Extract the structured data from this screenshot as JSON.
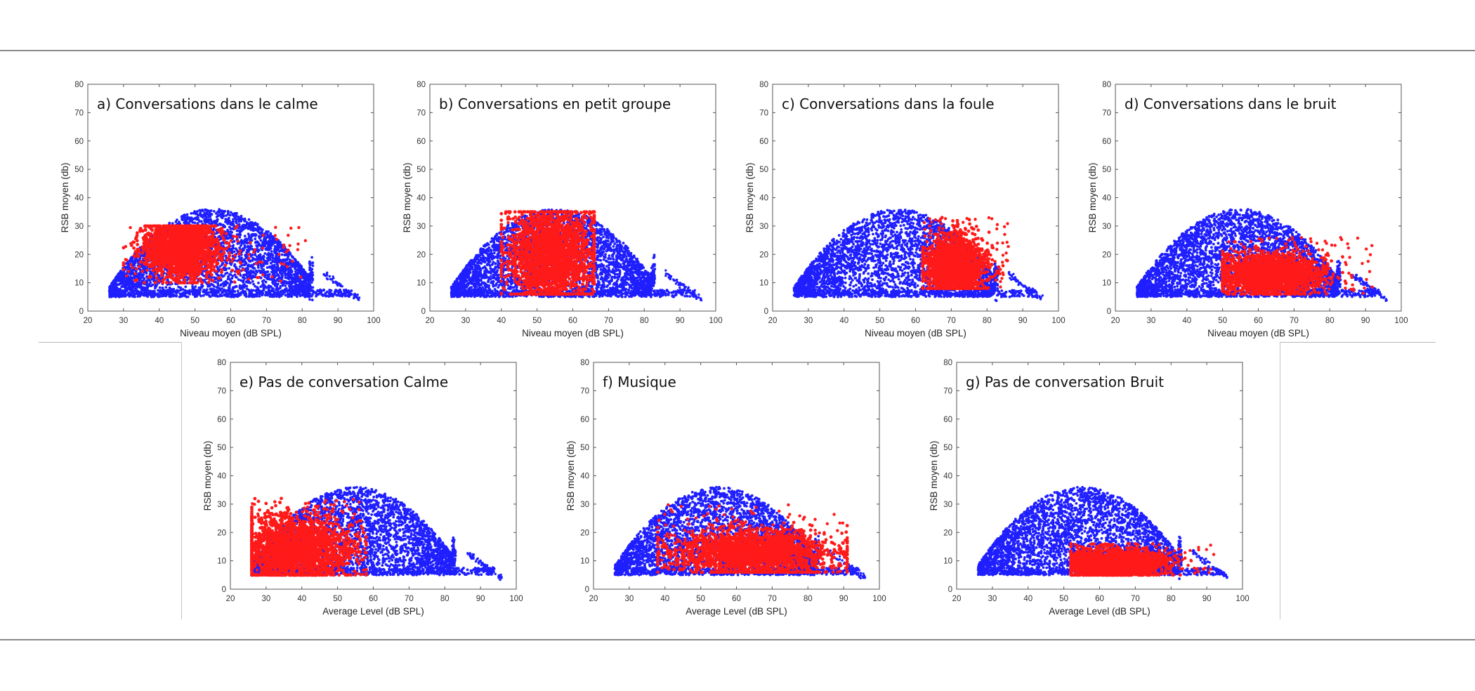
{
  "chart_data": [
    {
      "type": "scatter",
      "title": "a) Conversations dans le calme",
      "xlabel": "Niveau moyen (dB SPL)",
      "ylabel": "RSB moyen (db)",
      "xlim": [
        20,
        100
      ],
      "ylim": [
        0,
        80
      ],
      "xticks": [
        20,
        30,
        40,
        50,
        60,
        70,
        80,
        90,
        100
      ],
      "yticks": [
        0,
        10,
        20,
        30,
        40,
        50,
        60,
        70,
        80
      ],
      "series": [
        {
          "color": "#1f1fff",
          "dist": {
            "x_range": [
              26,
              96
            ],
            "y_min": 5,
            "peak_x": 55,
            "peak_y": 36,
            "tail": 12
          }
        },
        {
          "color": "#ff1a1a",
          "dist": {
            "cx": 46,
            "cy": 22,
            "sx": 5,
            "sy": 5,
            "spread_x": [
              30,
              82
            ],
            "spread_y": [
              10,
              30
            ]
          }
        }
      ]
    },
    {
      "type": "scatter",
      "title": "b) Conversations en petit groupe",
      "xlabel": "Niveau moyen (dB SPL)",
      "ylabel": "RSB moyen (db)",
      "xlim": [
        20,
        100
      ],
      "ylim": [
        0,
        80
      ],
      "xticks": [
        20,
        30,
        40,
        50,
        60,
        70,
        80,
        90,
        100
      ],
      "yticks": [
        0,
        10,
        20,
        30,
        40,
        50,
        60,
        70,
        80
      ],
      "series": [
        {
          "color": "#1f1fff",
          "dist": {
            "x_range": [
              26,
              96
            ],
            "y_min": 5,
            "peak_x": 55,
            "peak_y": 36,
            "tail": 12
          }
        },
        {
          "color": "#ff1a1a",
          "dist": {
            "cx": 54,
            "cy": 20,
            "sx": 6,
            "sy": 8,
            "spread_x": [
              40,
              66
            ],
            "spread_y": [
              6,
              35
            ]
          }
        }
      ]
    },
    {
      "type": "scatter",
      "title": "c) Conversations dans la foule",
      "xlabel": "Niveau moyen (dB SPL)",
      "ylabel": "RSB moyen (db)",
      "xlim": [
        20,
        100
      ],
      "ylim": [
        0,
        80
      ],
      "xticks": [
        20,
        30,
        40,
        50,
        60,
        70,
        80,
        90,
        100
      ],
      "yticks": [
        0,
        10,
        20,
        30,
        40,
        50,
        60,
        70,
        80
      ],
      "series": [
        {
          "color": "#1f1fff",
          "dist": {
            "x_range": [
              26,
              96
            ],
            "y_min": 5,
            "peak_x": 55,
            "peak_y": 36,
            "tail": 12
          }
        },
        {
          "color": "#ff1a1a",
          "dist": {
            "cx": 71,
            "cy": 16,
            "sx": 4,
            "sy": 5,
            "spread_x": [
              62,
              86
            ],
            "spread_y": [
              8,
              33
            ]
          }
        }
      ]
    },
    {
      "type": "scatter",
      "title": "d) Conversations dans le bruit",
      "xlabel": "Niveau moyen (dB SPL)",
      "ylabel": "RSB moyen (db)",
      "xlim": [
        20,
        100
      ],
      "ylim": [
        0,
        80
      ],
      "xticks": [
        20,
        30,
        40,
        50,
        60,
        70,
        80,
        90,
        100
      ],
      "yticks": [
        0,
        10,
        20,
        30,
        40,
        50,
        60,
        70,
        80
      ],
      "series": [
        {
          "color": "#1f1fff",
          "dist": {
            "x_range": [
              26,
              96
            ],
            "y_min": 5,
            "peak_x": 55,
            "peak_y": 36,
            "tail": 12
          }
        },
        {
          "color": "#ff1a1a",
          "dist": {
            "cx": 63,
            "cy": 13,
            "sx": 7,
            "sy": 3.5,
            "spread_x": [
              50,
              92
            ],
            "spread_y": [
              6,
              26
            ]
          }
        }
      ]
    },
    {
      "type": "scatter",
      "title": "e) Pas de conversation Calme",
      "xlabel": "Average Level (dB SPL)",
      "ylabel": "RSB moyen (db)",
      "xlim": [
        20,
        100
      ],
      "ylim": [
        0,
        80
      ],
      "xticks": [
        20,
        30,
        40,
        50,
        60,
        70,
        80,
        90,
        100
      ],
      "yticks": [
        0,
        10,
        20,
        30,
        40,
        50,
        60,
        70,
        80
      ],
      "series": [
        {
          "color": "#1f1fff",
          "dist": {
            "x_range": [
              26,
              96
            ],
            "y_min": 5,
            "peak_x": 55,
            "peak_y": 36,
            "tail": 12
          }
        },
        {
          "color": "#ff1a1a",
          "dist": {
            "cx": 38,
            "cy": 14,
            "sx": 8,
            "sy": 6,
            "spread_x": [
              26,
              58
            ],
            "spread_y": [
              5,
              32
            ]
          }
        }
      ]
    },
    {
      "type": "scatter",
      "title": "f) Musique",
      "xlabel": "Average Level (dB SPL)",
      "ylabel": "RSB moyen (db)",
      "xlim": [
        20,
        100
      ],
      "ylim": [
        0,
        80
      ],
      "xticks": [
        20,
        30,
        40,
        50,
        60,
        70,
        80,
        90,
        100
      ],
      "yticks": [
        0,
        10,
        20,
        30,
        40,
        50,
        60,
        70,
        80
      ],
      "series": [
        {
          "color": "#1f1fff",
          "dist": {
            "x_range": [
              26,
              96
            ],
            "y_min": 5,
            "peak_x": 55,
            "peak_y": 36,
            "tail": 12
          }
        },
        {
          "color": "#ff1a1a",
          "dist": {
            "cx": 65,
            "cy": 13,
            "sx": 11,
            "sy": 4,
            "spread_x": [
              38,
              91
            ],
            "spread_y": [
              6,
              30
            ]
          }
        }
      ]
    },
    {
      "type": "scatter",
      "title": "g) Pas de conversation Bruit",
      "xlabel": "Average Level (dB SPL)",
      "ylabel": "RSB moyen (db)",
      "xlim": [
        20,
        100
      ],
      "ylim": [
        0,
        80
      ],
      "xticks": [
        20,
        30,
        40,
        50,
        60,
        70,
        80,
        90,
        100
      ],
      "yticks": [
        0,
        10,
        20,
        30,
        40,
        50,
        60,
        70,
        80
      ],
      "series": [
        {
          "color": "#1f1fff",
          "dist": {
            "x_range": [
              26,
              96
            ],
            "y_min": 5,
            "peak_x": 55,
            "peak_y": 36,
            "tail": 12
          }
        },
        {
          "color": "#ff1a1a",
          "dist": {
            "cx": 64,
            "cy": 9,
            "sx": 7,
            "sy": 2.5,
            "spread_x": [
              52,
              92
            ],
            "spread_y": [
              5,
              16
            ]
          }
        }
      ]
    }
  ]
}
